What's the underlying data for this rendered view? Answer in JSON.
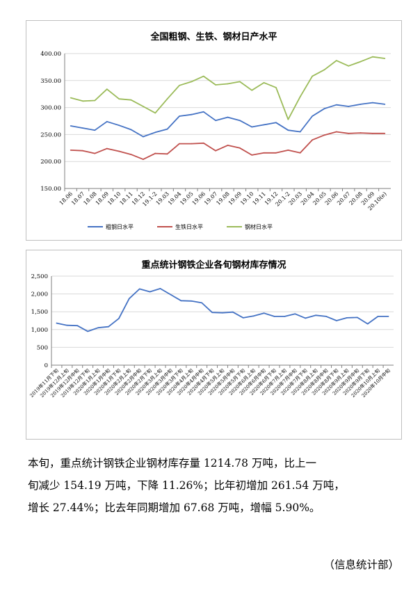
{
  "chart_data": [
    {
      "type": "line",
      "title": "全国粗钢、生铁、钢材日产水平",
      "categories": [
        "18.06",
        "18.07",
        "18.08",
        "18.09",
        "18.10",
        "18.11",
        "18.12",
        "19.1-2",
        "19.03",
        "19.04",
        "19.05",
        "19.06",
        "19.07",
        "19.08",
        "19.09",
        "19.10",
        "19.11",
        "19.12",
        "20.1-2",
        "20.03",
        "20.04",
        "20.05",
        "20.06",
        "20.07",
        "20.08",
        "20.09",
        "20.10(e)"
      ],
      "ylim": [
        150,
        400
      ],
      "yticks": [
        "150.00",
        "200.00",
        "250.00",
        "300.00",
        "350.00",
        "400.00"
      ],
      "grid": true,
      "legend_position": "bottom",
      "series": [
        {
          "name": "粗钢日水平",
          "color": "#4472c4",
          "values": [
            266,
            262,
            258,
            274,
            267,
            259,
            246,
            254,
            260,
            284,
            287,
            292,
            276,
            282,
            276,
            264,
            268,
            272,
            258,
            255,
            284,
            298,
            305,
            302,
            306,
            309,
            306
          ]
        },
        {
          "name": "生铁日水平",
          "color": "#c0504d",
          "values": [
            221,
            220,
            215,
            224,
            219,
            213,
            204,
            215,
            214,
            233,
            233,
            234,
            220,
            230,
            225,
            212,
            216,
            216,
            221,
            216,
            240,
            249,
            255,
            252,
            253,
            252,
            252
          ]
        },
        {
          "name": "钢材日水平",
          "color": "#9bbb59",
          "values": [
            318,
            312,
            313,
            334,
            316,
            314,
            302,
            290,
            316,
            341,
            348,
            358,
            342,
            344,
            348,
            332,
            346,
            337,
            278,
            320,
            358,
            370,
            387,
            377,
            385,
            394,
            391
          ]
        }
      ]
    },
    {
      "type": "line",
      "title": "重点统计钢铁企业各旬钢材库存情况",
      "categories": [
        "2019年11月下旬",
        "2019年12月上旬",
        "2019年12月中旬",
        "2019年12月下旬",
        "2020年1月上旬",
        "2020年1月中旬",
        "2020年1月下旬",
        "2020年2月上旬",
        "2020年2月中旬",
        "2020年2月下旬",
        "2020年3月上旬",
        "2020年3月中旬",
        "2020年3月下旬",
        "2020年4月上旬",
        "2020年4月中旬",
        "2020年4月下旬",
        "2020年5月上旬",
        "2020年5月中旬",
        "2020年5月下旬",
        "2020年6月上旬",
        "2020年6月中旬",
        "2020年6月下旬",
        "2020年7月上旬",
        "2020年7月中旬",
        "2020年7月下旬",
        "2020年8月上旬",
        "2020年8月中旬",
        "2020年8月下旬",
        "2020年9月上旬",
        "2020年9月中旬",
        "2020年9月下旬",
        "2020年10月上旬",
        "2020年10月中旬"
      ],
      "ylim": [
        0,
        2500
      ],
      "yticks": [
        "0",
        "500",
        "1,000",
        "1,500",
        "2,000",
        "2,500"
      ],
      "grid": true,
      "series": [
        {
          "color": "#4472c4",
          "values": [
            1180,
            1120,
            1110,
            950,
            1050,
            1080,
            1310,
            1870,
            2140,
            2060,
            2150,
            1980,
            1810,
            1800,
            1750,
            1480,
            1470,
            1490,
            1330,
            1380,
            1460,
            1370,
            1370,
            1440,
            1320,
            1400,
            1370,
            1250,
            1330,
            1340,
            1160,
            1370,
            1370
          ]
        }
      ]
    }
  ],
  "text": {
    "para1": "本旬，重点统计钢铁企业钢材库存量 1214.78 万吨，比上一",
    "para2": "旬减少 154.19 万吨，下降 11.26%；比年初增加 261.54 万吨，",
    "para3": "增长 27.44%；比去年同期增加 67.68 万吨，增幅 5.90%。",
    "department": "（信息统计部）"
  }
}
